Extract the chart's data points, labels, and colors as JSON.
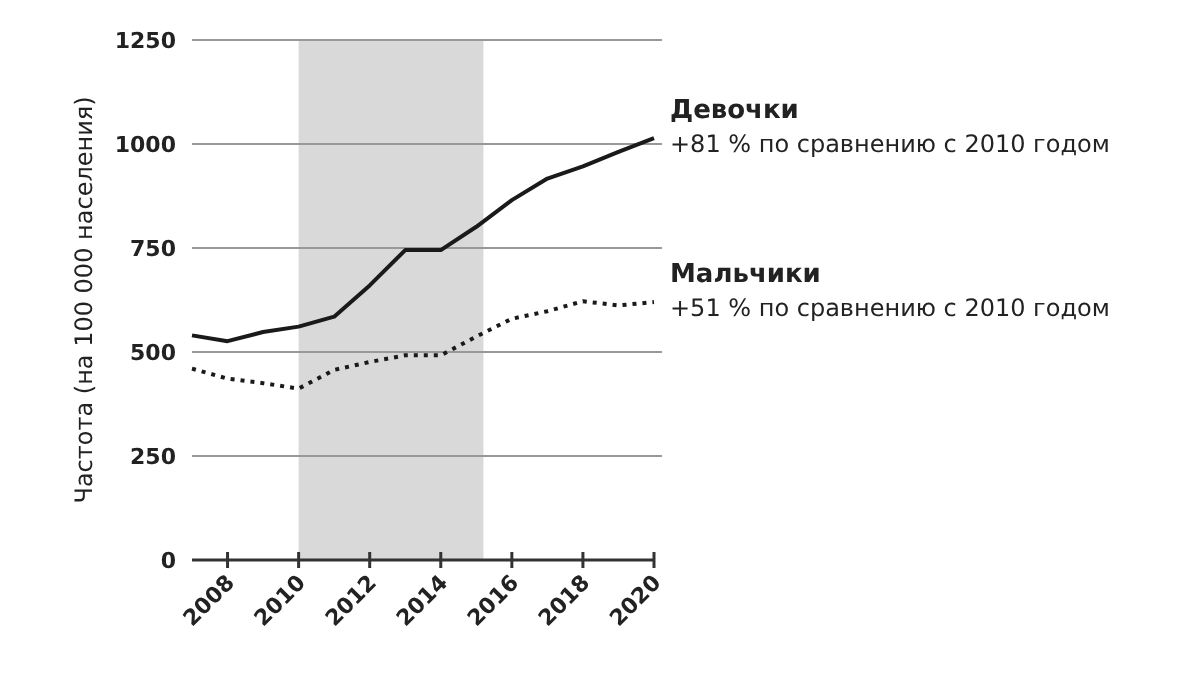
{
  "chart_data": {
    "type": "line",
    "ylabel": "Частота (на 100 000 населения)",
    "x": [
      2007,
      2008,
      2009,
      2010,
      2011,
      2012,
      2013,
      2014,
      2015,
      2016,
      2017,
      2018,
      2019,
      2020
    ],
    "series": [
      {
        "name": "Девочки",
        "color": "#1a1a1a",
        "line_style": "solid",
        "values": [
          540,
          526,
          548,
          561,
          585,
          660,
          745,
          745,
          801,
          865,
          917,
          946,
          981,
          1014
        ]
      },
      {
        "name": "Мальчики",
        "color": "#1a1a1a",
        "line_style": "dotted",
        "values": [
          460,
          436,
          425,
          412,
          457,
          476,
          492,
          492,
          537,
          580,
          598,
          622,
          612,
          620
        ]
      }
    ],
    "annotations": [
      "+81 % по сравнению с 2010 годом",
      "+51 % по сравнению с 2010 годом"
    ],
    "xlim": [
      2007,
      2020
    ],
    "xticks": [
      2008,
      2010,
      2012,
      2014,
      2016,
      2018,
      2020
    ],
    "ylim": [
      0,
      1250
    ],
    "yticks": [
      0,
      250,
      500,
      750,
      1000,
      1250
    ],
    "grid": "y",
    "bands": [
      {
        "axis": "x",
        "from": 2010,
        "to": 2015.2,
        "color": "#d9d9d9"
      }
    ]
  }
}
